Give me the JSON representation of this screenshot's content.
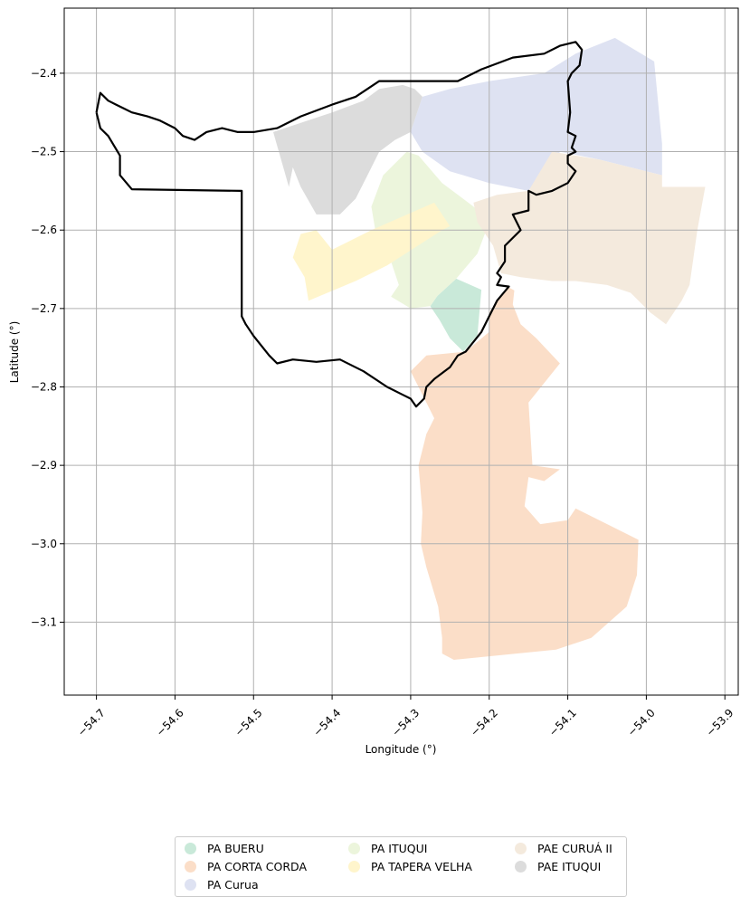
{
  "chart_data": {
    "type": "map",
    "xlabel": "Longitude (°)",
    "ylabel": "Latitude (°)",
    "xlim": [
      -54.741,
      -53.883
    ],
    "ylim": [
      -3.193,
      -2.317
    ],
    "grid": true,
    "legend_position": "bottom-center",
    "legend_columns": 3,
    "x_ticks": [
      {
        "value": -54.7,
        "label": "−54.7"
      },
      {
        "value": -54.6,
        "label": "−54.6"
      },
      {
        "value": -54.5,
        "label": "−54.5"
      },
      {
        "value": -54.4,
        "label": "−54.4"
      },
      {
        "value": -54.3,
        "label": "−54.3"
      },
      {
        "value": -54.2,
        "label": "−54.2"
      },
      {
        "value": -54.1,
        "label": "−54.1"
      },
      {
        "value": -54.0,
        "label": "−54.0"
      },
      {
        "value": -53.9,
        "label": "−53.9"
      }
    ],
    "y_ticks": [
      {
        "value": -2.4,
        "label": "−2.4"
      },
      {
        "value": -2.5,
        "label": "−2.5"
      },
      {
        "value": -2.6,
        "label": "−2.6"
      },
      {
        "value": -2.7,
        "label": "−2.7"
      },
      {
        "value": -2.8,
        "label": "−2.8"
      },
      {
        "value": -2.9,
        "label": "−2.9"
      },
      {
        "value": -3.0,
        "label": "−3.0"
      },
      {
        "value": -3.1,
        "label": "−3.1"
      }
    ],
    "series": [
      {
        "name": "PA BUERU",
        "color": "#c9e9d9",
        "polygon": [
          [
            -54.266,
            -2.684
          ],
          [
            -54.242,
            -2.662
          ],
          [
            -54.21,
            -2.676
          ],
          [
            -54.215,
            -2.734
          ],
          [
            -54.233,
            -2.755
          ],
          [
            -54.25,
            -2.738
          ],
          [
            -54.263,
            -2.715
          ],
          [
            -54.275,
            -2.697
          ]
        ]
      },
      {
        "name": "PA CORTA CORDA",
        "color": "#fbdec8",
        "polygon": [
          [
            -54.2,
            -2.705
          ],
          [
            -54.177,
            -2.672
          ],
          [
            -54.168,
            -2.677
          ],
          [
            -54.17,
            -2.695
          ],
          [
            -54.16,
            -2.72
          ],
          [
            -54.14,
            -2.738
          ],
          [
            -54.11,
            -2.77
          ],
          [
            -54.15,
            -2.82
          ],
          [
            -54.145,
            -2.9
          ],
          [
            -54.11,
            -2.905
          ],
          [
            -54.13,
            -2.92
          ],
          [
            -54.15,
            -2.915
          ],
          [
            -54.155,
            -2.952
          ],
          [
            -54.135,
            -2.975
          ],
          [
            -54.1,
            -2.97
          ],
          [
            -54.09,
            -2.955
          ],
          [
            -54.01,
            -2.995
          ],
          [
            -54.012,
            -3.04
          ],
          [
            -54.025,
            -3.08
          ],
          [
            -54.07,
            -3.12
          ],
          [
            -54.115,
            -3.135
          ],
          [
            -54.245,
            -3.148
          ],
          [
            -54.26,
            -3.14
          ],
          [
            -54.26,
            -3.12
          ],
          [
            -54.265,
            -3.08
          ],
          [
            -54.28,
            -3.03
          ],
          [
            -54.287,
            -3.0
          ],
          [
            -54.285,
            -2.96
          ],
          [
            -54.29,
            -2.9
          ],
          [
            -54.28,
            -2.86
          ],
          [
            -54.27,
            -2.84
          ],
          [
            -54.29,
            -2.8
          ],
          [
            -54.3,
            -2.78
          ],
          [
            -54.28,
            -2.76
          ],
          [
            -54.23,
            -2.755
          ],
          [
            -54.2,
            -2.73
          ]
        ]
      },
      {
        "name": "PA Curua",
        "color": "#dee2f2",
        "polygon": [
          [
            -54.285,
            -2.43
          ],
          [
            -54.25,
            -2.42
          ],
          [
            -54.2,
            -2.41
          ],
          [
            -54.13,
            -2.4
          ],
          [
            -54.09,
            -2.375
          ],
          [
            -54.04,
            -2.355
          ],
          [
            -53.99,
            -2.385
          ],
          [
            -53.98,
            -2.49
          ],
          [
            -53.98,
            -2.53
          ],
          [
            -54.06,
            -2.51
          ],
          [
            -54.11,
            -2.5
          ],
          [
            -54.12,
            -2.52
          ],
          [
            -54.15,
            -2.55
          ],
          [
            -54.2,
            -2.54
          ],
          [
            -54.25,
            -2.525
          ],
          [
            -54.285,
            -2.5
          ],
          [
            -54.3,
            -2.475
          ]
        ]
      },
      {
        "name": "PA ITUQUI",
        "color": "#ecf5dc",
        "polygon": [
          [
            -54.29,
            -2.505
          ],
          [
            -54.26,
            -2.54
          ],
          [
            -54.22,
            -2.57
          ],
          [
            -54.2,
            -2.59
          ],
          [
            -54.215,
            -2.63
          ],
          [
            -54.242,
            -2.662
          ],
          [
            -54.266,
            -2.684
          ],
          [
            -54.275,
            -2.697
          ],
          [
            -54.3,
            -2.7
          ],
          [
            -54.325,
            -2.685
          ],
          [
            -54.315,
            -2.67
          ],
          [
            -54.325,
            -2.64
          ],
          [
            -54.345,
            -2.6
          ],
          [
            -54.35,
            -2.57
          ],
          [
            -54.335,
            -2.53
          ],
          [
            -54.305,
            -2.5
          ]
        ]
      },
      {
        "name": "PA TAPERA VELHA",
        "color": "#fff5cc",
        "polygon": [
          [
            -54.27,
            -2.565
          ],
          [
            -54.35,
            -2.6
          ],
          [
            -54.4,
            -2.625
          ],
          [
            -54.42,
            -2.6
          ],
          [
            -54.44,
            -2.605
          ],
          [
            -54.45,
            -2.635
          ],
          [
            -54.435,
            -2.66
          ],
          [
            -54.43,
            -2.69
          ],
          [
            -54.37,
            -2.665
          ],
          [
            -54.33,
            -2.645
          ],
          [
            -54.26,
            -2.6
          ],
          [
            -54.25,
            -2.595
          ]
        ]
      },
      {
        "name": "PAE CURUÁ II",
        "color": "#f4eadd",
        "polygon": [
          [
            -54.12,
            -2.5
          ],
          [
            -54.06,
            -2.51
          ],
          [
            -53.98,
            -2.53
          ],
          [
            -53.98,
            -2.545
          ],
          [
            -53.925,
            -2.545
          ],
          [
            -53.935,
            -2.6
          ],
          [
            -53.945,
            -2.67
          ],
          [
            -53.955,
            -2.69
          ],
          [
            -53.975,
            -2.72
          ],
          [
            -53.995,
            -2.705
          ],
          [
            -54.02,
            -2.68
          ],
          [
            -54.05,
            -2.67
          ],
          [
            -54.09,
            -2.665
          ],
          [
            -54.12,
            -2.665
          ],
          [
            -54.16,
            -2.66
          ],
          [
            -54.185,
            -2.655
          ],
          [
            -54.195,
            -2.62
          ],
          [
            -54.215,
            -2.59
          ],
          [
            -54.22,
            -2.565
          ],
          [
            -54.19,
            -2.555
          ],
          [
            -54.15,
            -2.55
          ]
        ]
      },
      {
        "name": "PAE ITUQUI",
        "color": "#dcdcdc",
        "polygon": [
          [
            -54.475,
            -2.475
          ],
          [
            -54.4,
            -2.45
          ],
          [
            -54.36,
            -2.435
          ],
          [
            -54.34,
            -2.42
          ],
          [
            -54.31,
            -2.415
          ],
          [
            -54.295,
            -2.42
          ],
          [
            -54.285,
            -2.43
          ],
          [
            -54.3,
            -2.475
          ],
          [
            -54.32,
            -2.485
          ],
          [
            -54.34,
            -2.5
          ],
          [
            -54.355,
            -2.53
          ],
          [
            -54.37,
            -2.56
          ],
          [
            -54.39,
            -2.58
          ],
          [
            -54.42,
            -2.58
          ],
          [
            -54.44,
            -2.545
          ],
          [
            -54.45,
            -2.52
          ],
          [
            -54.455,
            -2.545
          ]
        ]
      }
    ],
    "boundary": {
      "color": "#000000",
      "points": [
        [
          -54.7,
          -2.45
        ],
        [
          -54.695,
          -2.425
        ],
        [
          -54.685,
          -2.435
        ],
        [
          -54.675,
          -2.44
        ],
        [
          -54.665,
          -2.445
        ],
        [
          -54.655,
          -2.45
        ],
        [
          -54.635,
          -2.455
        ],
        [
          -54.62,
          -2.46
        ],
        [
          -54.6,
          -2.47
        ],
        [
          -54.59,
          -2.48
        ],
        [
          -54.575,
          -2.485
        ],
        [
          -54.56,
          -2.475
        ],
        [
          -54.54,
          -2.47
        ],
        [
          -54.52,
          -2.475
        ],
        [
          -54.5,
          -2.475
        ],
        [
          -54.47,
          -2.47
        ],
        [
          -54.44,
          -2.455
        ],
        [
          -54.4,
          -2.44
        ],
        [
          -54.37,
          -2.43
        ],
        [
          -54.34,
          -2.41
        ],
        [
          -54.28,
          -2.41
        ],
        [
          -54.24,
          -2.41
        ],
        [
          -54.21,
          -2.395
        ],
        [
          -54.17,
          -2.38
        ],
        [
          -54.13,
          -2.375
        ],
        [
          -54.11,
          -2.365
        ],
        [
          -54.09,
          -2.36
        ],
        [
          -54.082,
          -2.37
        ],
        [
          -54.085,
          -2.39
        ],
        [
          -54.095,
          -2.4
        ],
        [
          -54.1,
          -2.41
        ],
        [
          -54.097,
          -2.45
        ],
        [
          -54.1,
          -2.475
        ],
        [
          -54.09,
          -2.48
        ],
        [
          -54.095,
          -2.495
        ],
        [
          -54.09,
          -2.5
        ],
        [
          -54.1,
          -2.505
        ],
        [
          -54.1,
          -2.515
        ],
        [
          -54.09,
          -2.525
        ],
        [
          -54.1,
          -2.54
        ],
        [
          -54.12,
          -2.55
        ],
        [
          -54.14,
          -2.555
        ],
        [
          -54.15,
          -2.55
        ],
        [
          -54.15,
          -2.575
        ],
        [
          -54.17,
          -2.58
        ],
        [
          -54.16,
          -2.6
        ],
        [
          -54.18,
          -2.62
        ],
        [
          -54.18,
          -2.64
        ],
        [
          -54.19,
          -2.655
        ],
        [
          -54.185,
          -2.66
        ],
        [
          -54.19,
          -2.67
        ],
        [
          -54.175,
          -2.672
        ],
        [
          -54.19,
          -2.69
        ],
        [
          -54.2,
          -2.71
        ],
        [
          -54.21,
          -2.73
        ],
        [
          -54.23,
          -2.755
        ],
        [
          -54.24,
          -2.76
        ],
        [
          -54.25,
          -2.775
        ],
        [
          -54.27,
          -2.79
        ],
        [
          -54.28,
          -2.8
        ],
        [
          -54.283,
          -2.815
        ],
        [
          -54.293,
          -2.825
        ],
        [
          -54.3,
          -2.815
        ],
        [
          -54.31,
          -2.81
        ],
        [
          -54.33,
          -2.8
        ],
        [
          -54.36,
          -2.78
        ],
        [
          -54.39,
          -2.765
        ],
        [
          -54.42,
          -2.768
        ],
        [
          -54.45,
          -2.765
        ],
        [
          -54.47,
          -2.77
        ],
        [
          -54.48,
          -2.76
        ],
        [
          -54.5,
          -2.735
        ],
        [
          -54.51,
          -2.72
        ],
        [
          -54.515,
          -2.71
        ],
        [
          -54.515,
          -2.55
        ],
        [
          -54.655,
          -2.548
        ],
        [
          -54.67,
          -2.53
        ],
        [
          -54.67,
          -2.505
        ],
        [
          -54.685,
          -2.48
        ],
        [
          -54.695,
          -2.47
        ],
        [
          -54.7,
          -2.45
        ]
      ]
    },
    "legend": [
      {
        "label": "PA BUERU",
        "color": "#c9e9d9"
      },
      {
        "label": "PA CORTA CORDA",
        "color": "#fbdec8"
      },
      {
        "label": "PA Curua",
        "color": "#dee2f2"
      },
      {
        "label": "PA ITUQUI",
        "color": "#ecf5dc"
      },
      {
        "label": "PA TAPERA VELHA",
        "color": "#fff5cc"
      },
      {
        "label": "PAE CURUÁ II",
        "color": "#f4eadd"
      },
      {
        "label": "PAE ITUQUI",
        "color": "#dcdcdc"
      }
    ]
  }
}
